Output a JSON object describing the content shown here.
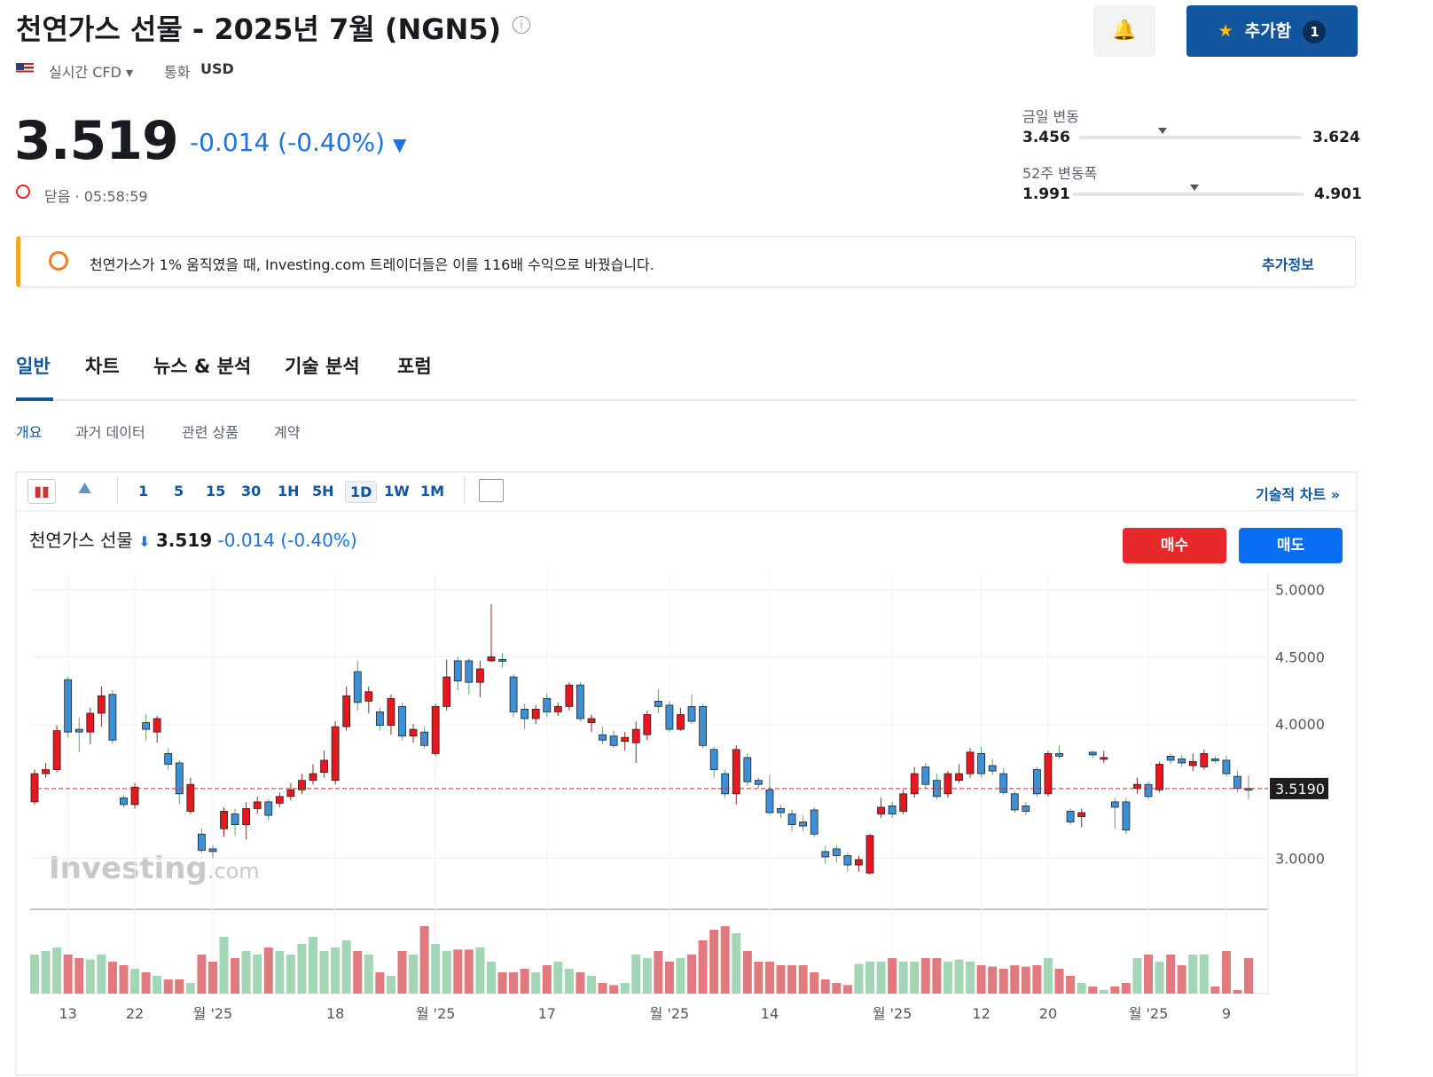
{
  "header": {
    "title": "천연가스 선물 - 2025년 7월 (NGN5)",
    "market": "실시간 CFD",
    "currency_label": "통화",
    "currency": "USD",
    "watchlist_button": "추가함",
    "watchlist_count": "1"
  },
  "quote": {
    "price": 3.519,
    "change": -0.014,
    "change_pct": "(-0.40%)",
    "status": "닫음",
    "time": "05:58:59"
  },
  "ranges": {
    "day": {
      "label": "금일 변동",
      "low": 3.456,
      "high": 3.624
    },
    "week52": {
      "label": "52주 변동폭",
      "low": 1.991,
      "high": 4.901
    }
  },
  "banner": {
    "text": "천연가스가 1% 움직였을 때, Investing.com 트레이더들은 이를 116배 수익으로 바꿨습니다.",
    "link": "추가정보"
  },
  "tabs": [
    "일반",
    "차트",
    "뉴스 & 분석",
    "기술 분석",
    "포럼"
  ],
  "subtabs": [
    "개요",
    "과거 데이터",
    "관련 상품",
    "계약"
  ],
  "toolbar": {
    "intervals": [
      "1",
      "5",
      "15",
      "30",
      "1H",
      "5H",
      "1D",
      "1W",
      "1M"
    ],
    "technical_link": "기술적 차트"
  },
  "chart_data": {
    "type": "candlestick",
    "name": "천연가스 선물",
    "price": 3.519,
    "change": -0.014,
    "change_pct": "(-0.40%)",
    "buy": "매수",
    "sell": "매도",
    "watermark": [
      "Investing",
      ".com"
    ],
    "up_color": "#e8171e",
    "down_color": "#3d8fd6",
    "volume_up_color": "#a3d6b4",
    "volume_down_color": "#e07a7e",
    "ylim": [
      2.62,
      5.13
    ],
    "yticks": [
      {
        "value": 3,
        "label": "3.0000"
      },
      {
        "value": 4,
        "label": "4.0000"
      },
      {
        "value": 4.5,
        "label": "4.5000"
      },
      {
        "value": 5,
        "label": "5.0000"
      }
    ],
    "current_price": {
      "value": 3.519,
      "label": "3.5190"
    },
    "volume_ylim": [
      0,
      100
    ],
    "categories": [
      null,
      null,
      null,
      "13",
      null,
      null,
      null,
      null,
      null,
      "22",
      null,
      null,
      null,
      null,
      null,
      null,
      "월 '25",
      null,
      null,
      null,
      null,
      null,
      null,
      null,
      null,
      null,
      null,
      "18",
      null,
      null,
      null,
      null,
      null,
      null,
      null,
      null,
      "월 '25",
      null,
      null,
      null,
      null,
      null,
      null,
      null,
      null,
      null,
      "17",
      null,
      null,
      null,
      null,
      null,
      null,
      null,
      null,
      null,
      null,
      "월 '25",
      null,
      null,
      null,
      null,
      null,
      null,
      null,
      null,
      "14",
      null,
      null,
      null,
      null,
      null,
      null,
      null,
      null,
      null,
      null,
      "월 '25",
      null,
      null,
      null,
      null,
      null,
      null,
      null,
      "12",
      null,
      null,
      null,
      null,
      null,
      "20",
      null,
      null,
      null,
      null,
      null,
      null,
      null,
      null,
      "월 '25",
      null,
      null,
      null,
      null,
      null,
      null,
      "9",
      null,
      null
    ],
    "ohlc": [
      [
        3.42,
        3.66,
        3.4,
        3.63
      ],
      [
        3.63,
        3.71,
        3.6,
        3.66
      ],
      [
        3.66,
        3.99,
        3.64,
        3.95
      ],
      [
        4.33,
        4.35,
        3.9,
        3.94
      ],
      [
        3.96,
        4.05,
        3.79,
        3.94
      ],
      [
        3.94,
        4.12,
        3.85,
        4.08
      ],
      [
        4.08,
        4.28,
        3.98,
        4.21
      ],
      [
        4.22,
        4.25,
        3.85,
        3.88
      ],
      [
        3.45,
        3.47,
        3.38,
        3.4
      ],
      [
        3.4,
        3.56,
        3.37,
        3.53
      ],
      [
        4.01,
        4.07,
        3.88,
        3.96
      ],
      [
        3.94,
        4.06,
        3.86,
        4.04
      ],
      [
        3.78,
        3.82,
        3.66,
        3.7
      ],
      [
        3.71,
        3.73,
        3.4,
        3.48
      ],
      [
        3.35,
        3.6,
        3.33,
        3.55
      ],
      [
        3.18,
        3.22,
        3.04,
        3.06
      ],
      [
        3.07,
        3.1,
        3.0,
        3.05
      ],
      [
        3.22,
        3.38,
        3.16,
        3.35
      ],
      [
        3.33,
        3.37,
        3.17,
        3.25
      ],
      [
        3.25,
        3.42,
        3.14,
        3.37
      ],
      [
        3.37,
        3.46,
        3.33,
        3.42
      ],
      [
        3.42,
        3.44,
        3.28,
        3.32
      ],
      [
        3.41,
        3.49,
        3.38,
        3.46
      ],
      [
        3.46,
        3.56,
        3.43,
        3.51
      ],
      [
        3.51,
        3.63,
        3.48,
        3.58
      ],
      [
        3.58,
        3.7,
        3.55,
        3.63
      ],
      [
        3.64,
        3.8,
        3.6,
        3.73
      ],
      [
        3.58,
        4.02,
        3.55,
        3.98
      ],
      [
        3.98,
        4.28,
        3.95,
        4.21
      ],
      [
        4.39,
        4.47,
        4.1,
        4.16
      ],
      [
        4.17,
        4.28,
        4.08,
        4.24
      ],
      [
        4.09,
        4.12,
        3.95,
        3.99
      ],
      [
        3.99,
        4.22,
        3.92,
        4.19
      ],
      [
        4.13,
        4.16,
        3.88,
        3.91
      ],
      [
        3.91,
        4.0,
        3.86,
        3.96
      ],
      [
        3.94,
        3.98,
        3.82,
        3.84
      ],
      [
        3.78,
        4.15,
        3.76,
        4.13
      ],
      [
        4.13,
        4.48,
        4.1,
        4.35
      ],
      [
        4.47,
        4.5,
        4.25,
        4.32
      ],
      [
        4.47,
        4.49,
        4.22,
        4.31
      ],
      [
        4.31,
        4.47,
        4.2,
        4.41
      ],
      [
        4.47,
        4.89,
        4.46,
        4.5
      ],
      [
        4.48,
        4.53,
        4.42,
        4.47
      ],
      [
        4.35,
        4.37,
        4.05,
        4.09
      ],
      [
        4.11,
        4.15,
        3.96,
        4.04
      ],
      [
        4.04,
        4.14,
        4.0,
        4.11
      ],
      [
        4.19,
        4.23,
        4.05,
        4.09
      ],
      [
        4.09,
        4.16,
        4.06,
        4.13
      ],
      [
        4.13,
        4.31,
        4.1,
        4.29
      ],
      [
        4.29,
        4.31,
        4.02,
        4.04
      ],
      [
        4.01,
        4.07,
        3.94,
        4.04
      ],
      [
        3.92,
        3.98,
        3.85,
        3.88
      ],
      [
        3.91,
        3.95,
        3.82,
        3.84
      ],
      [
        3.87,
        3.94,
        3.8,
        3.9
      ],
      [
        3.86,
        4.02,
        3.71,
        3.96
      ],
      [
        3.92,
        4.1,
        3.88,
        4.07
      ],
      [
        4.17,
        4.26,
        4.08,
        4.13
      ],
      [
        4.14,
        4.17,
        3.94,
        3.96
      ],
      [
        3.96,
        4.12,
        3.95,
        4.07
      ],
      [
        4.13,
        4.22,
        4.0,
        4.02
      ],
      [
        4.13,
        4.15,
        3.82,
        3.84
      ],
      [
        3.81,
        3.83,
        3.6,
        3.66
      ],
      [
        3.63,
        3.66,
        3.45,
        3.48
      ],
      [
        3.48,
        3.84,
        3.4,
        3.81
      ],
      [
        3.75,
        3.78,
        3.54,
        3.57
      ],
      [
        3.58,
        3.6,
        3.52,
        3.55
      ],
      [
        3.51,
        3.62,
        3.32,
        3.34
      ],
      [
        3.37,
        3.4,
        3.3,
        3.34
      ],
      [
        3.33,
        3.36,
        3.2,
        3.25
      ],
      [
        3.27,
        3.32,
        3.2,
        3.24
      ],
      [
        3.36,
        3.38,
        3.16,
        3.18
      ],
      [
        3.05,
        3.09,
        2.96,
        3.01
      ],
      [
        3.07,
        3.1,
        2.97,
        3.02
      ],
      [
        3.02,
        3.04,
        2.9,
        2.95
      ],
      [
        2.95,
        3.02,
        2.9,
        2.99
      ],
      [
        2.89,
        3.18,
        2.88,
        3.17
      ],
      [
        3.33,
        3.45,
        3.3,
        3.38
      ],
      [
        3.39,
        3.42,
        3.3,
        3.33
      ],
      [
        3.35,
        3.51,
        3.33,
        3.48
      ],
      [
        3.48,
        3.68,
        3.45,
        3.63
      ],
      [
        3.68,
        3.71,
        3.52,
        3.55
      ],
      [
        3.58,
        3.63,
        3.44,
        3.46
      ],
      [
        3.48,
        3.65,
        3.45,
        3.63
      ],
      [
        3.58,
        3.7,
        3.56,
        3.63
      ],
      [
        3.63,
        3.82,
        3.6,
        3.79
      ],
      [
        3.78,
        3.83,
        3.6,
        3.63
      ],
      [
        3.69,
        3.74,
        3.62,
        3.65
      ],
      [
        3.63,
        3.67,
        3.47,
        3.49
      ],
      [
        3.48,
        3.5,
        3.34,
        3.36
      ],
      [
        3.39,
        3.42,
        3.32,
        3.35
      ],
      [
        3.66,
        3.68,
        3.46,
        3.48
      ],
      [
        3.48,
        3.8,
        3.46,
        3.78
      ],
      [
        3.78,
        3.84,
        3.74,
        3.76
      ],
      [
        3.35,
        3.37,
        3.25,
        3.27
      ],
      [
        3.31,
        3.37,
        3.23,
        3.34
      ],
      [
        3.79,
        3.8,
        3.75,
        3.77
      ],
      [
        3.74,
        3.8,
        3.71,
        3.75
      ],
      [
        3.42,
        3.45,
        3.22,
        3.38
      ],
      [
        3.42,
        3.45,
        3.18,
        3.21
      ],
      [
        3.52,
        3.6,
        3.48,
        3.55
      ],
      [
        3.55,
        3.57,
        3.44,
        3.46
      ],
      [
        3.51,
        3.72,
        3.49,
        3.7
      ],
      [
        3.76,
        3.78,
        3.7,
        3.73
      ],
      [
        3.74,
        3.77,
        3.68,
        3.71
      ],
      [
        3.69,
        3.78,
        3.65,
        3.72
      ],
      [
        3.68,
        3.81,
        3.66,
        3.78
      ],
      [
        3.74,
        3.76,
        3.71,
        3.73
      ],
      [
        3.73,
        3.76,
        3.61,
        3.63
      ],
      [
        3.61,
        3.65,
        3.49,
        3.52
      ],
      [
        3.52,
        3.62,
        3.44,
        3.519
      ]
    ],
    "volume": [
      55,
      60,
      65,
      55,
      50,
      48,
      55,
      45,
      40,
      35,
      30,
      25,
      20,
      20,
      15,
      55,
      45,
      80,
      50,
      60,
      55,
      65,
      60,
      55,
      70,
      80,
      60,
      65,
      75,
      60,
      55,
      30,
      25,
      60,
      55,
      95,
      70,
      60,
      62,
      62,
      65,
      45,
      30,
      30,
      35,
      30,
      40,
      45,
      35,
      30,
      25,
      15,
      12,
      15,
      55,
      50,
      60,
      45,
      50,
      55,
      75,
      90,
      95,
      85,
      60,
      45,
      45,
      40,
      40,
      40,
      30,
      20,
      15,
      12,
      42,
      45,
      45,
      50,
      45,
      45,
      50,
      50,
      45,
      48,
      45,
      40,
      38,
      35,
      40,
      38,
      40,
      50,
      35,
      25,
      15,
      10,
      5,
      10,
      15,
      50,
      55,
      45,
      55,
      40,
      55,
      55,
      10,
      60,
      5,
      50
    ]
  }
}
